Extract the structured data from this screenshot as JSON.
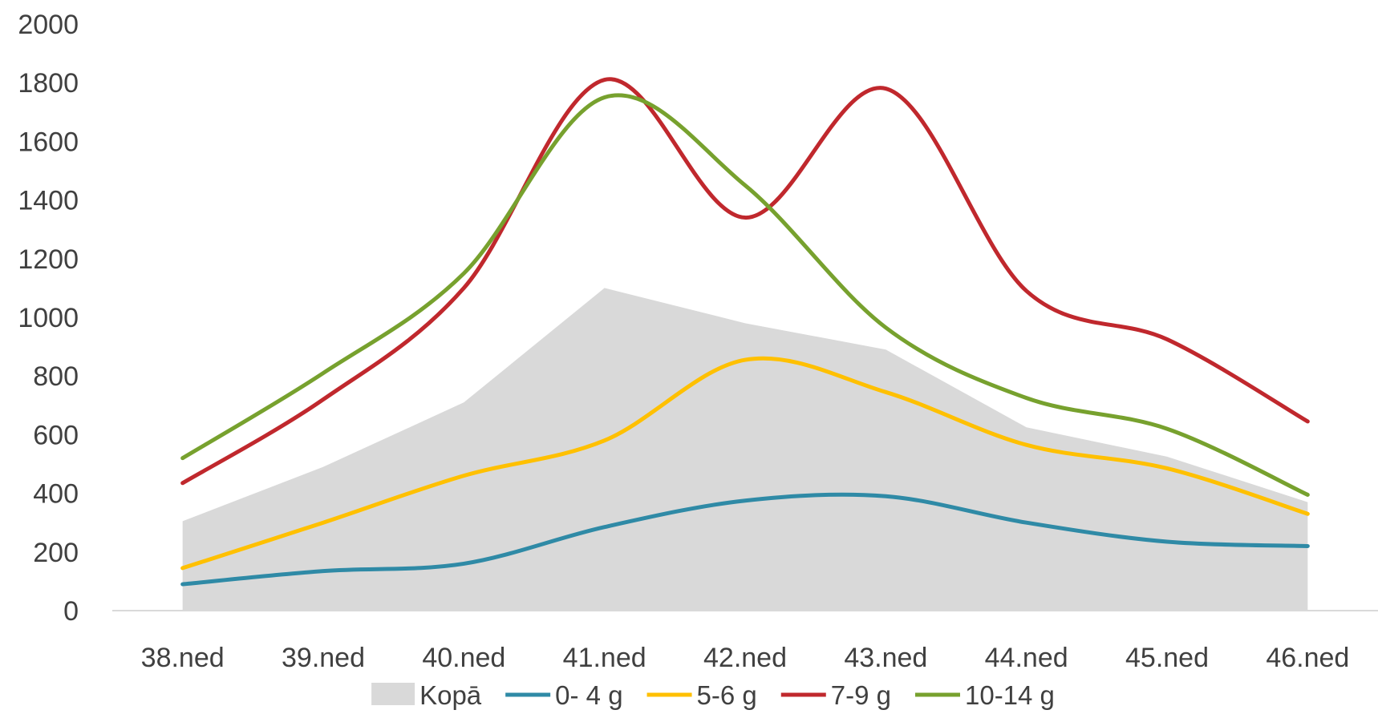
{
  "chart_data": {
    "type": "line",
    "title": "",
    "xlabel": "",
    "ylabel": "",
    "categories": [
      "38.ned",
      "39.ned",
      "40.ned",
      "41.ned",
      "42.ned",
      "43.ned",
      "44.ned",
      "45.ned",
      "46.ned"
    ],
    "ylim": [
      0,
      2000
    ],
    "yticks": [
      "0",
      "200",
      "400",
      "600",
      "800",
      "1000",
      "1200",
      "1400",
      "1600",
      "1800",
      "2000"
    ],
    "grid": false,
    "legend_position": "bottom",
    "series": [
      {
        "name": "Kopā",
        "kind": "area",
        "color": "#d9d9d9",
        "values": [
          305,
          490,
          710,
          1100,
          980,
          890,
          625,
          525,
          370
        ]
      },
      {
        "name": "0- 4 g",
        "kind": "line",
        "color": "#2f8aa6",
        "values": [
          90,
          135,
          160,
          285,
          375,
          390,
          300,
          235,
          220
        ]
      },
      {
        "name": "5-6 g",
        "kind": "line",
        "color": "#ffc000",
        "values": [
          145,
          300,
          460,
          580,
          855,
          745,
          565,
          485,
          330
        ]
      },
      {
        "name": "7-9 g",
        "kind": "line",
        "color": "#c0282d",
        "values": [
          435,
          720,
          1100,
          1810,
          1340,
          1780,
          1090,
          925,
          645
        ]
      },
      {
        "name": "10-14 g",
        "kind": "line",
        "color": "#77a12e",
        "values": [
          520,
          810,
          1150,
          1750,
          1450,
          965,
          725,
          620,
          395
        ]
      }
    ]
  }
}
